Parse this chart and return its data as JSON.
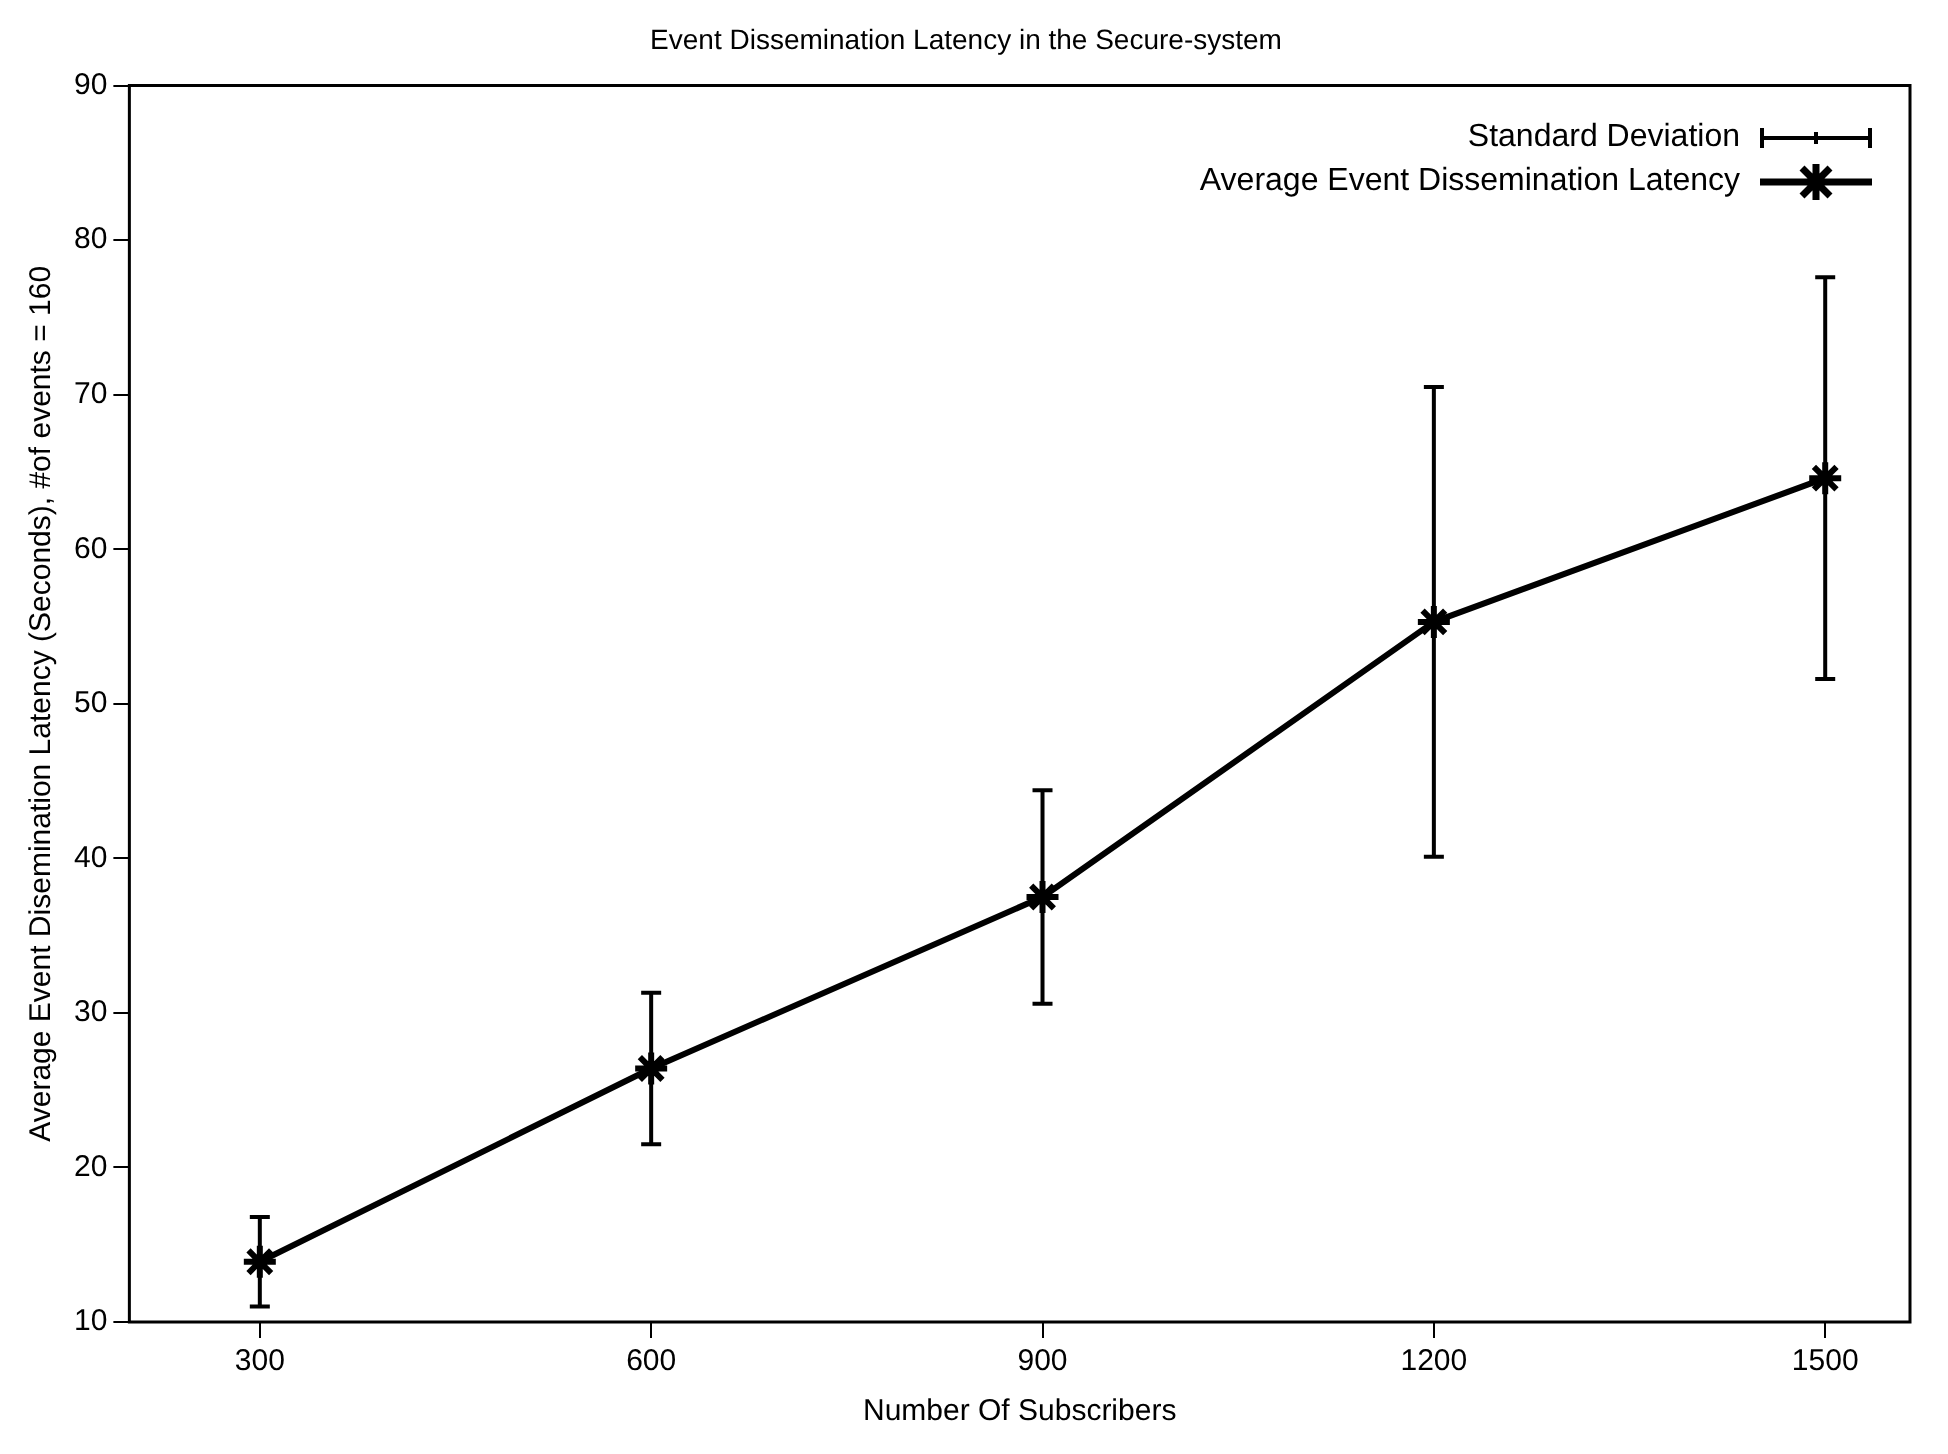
{
  "chart_data": {
    "type": "line",
    "title": "Event Dissemination Latency in the Secure-system",
    "xlabel": "Number Of Subscribers",
    "ylabel": "Average Event Disemination Latency (Seconds), #of events = 160",
    "x": [
      300,
      600,
      900,
      1200,
      1500
    ],
    "series": [
      {
        "name": "Average Event Dissemination Latency",
        "color": "#000000",
        "values": [
          13.9,
          26.4,
          37.5,
          55.3,
          64.6
        ],
        "errors": [
          [
            11.0,
            16.8
          ],
          [
            21.5,
            31.3
          ],
          [
            30.6,
            44.4
          ],
          [
            40.1,
            70.5
          ],
          [
            51.6,
            77.6
          ]
        ]
      }
    ],
    "annotations": [
      "Standard Deviation"
    ],
    "xlim": [
      200,
      1565
    ],
    "xticks": [
      300,
      600,
      900,
      1200,
      1500
    ],
    "ylim": [
      10,
      90
    ],
    "yticks": [
      10,
      20,
      30,
      40,
      50,
      60,
      70,
      80,
      90
    ],
    "grid": false,
    "legend": "top right",
    "marker": "cross",
    "line_style": "solid"
  }
}
